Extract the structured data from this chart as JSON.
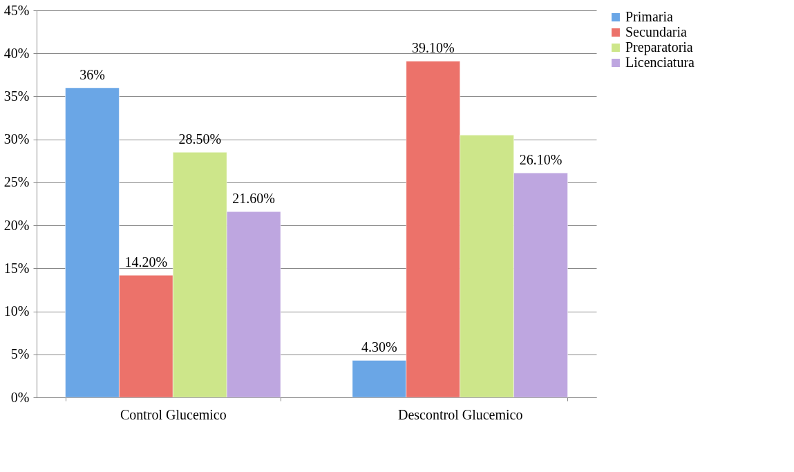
{
  "chart_data": {
    "type": "bar",
    "categories": [
      "Control Glucemico",
      "Descontrol Glucemico"
    ],
    "series": [
      {
        "name": "Primaria",
        "color": "#6aa6e6",
        "values": [
          36,
          4.3
        ],
        "value_labels": [
          "36%",
          "4.30%"
        ]
      },
      {
        "name": "Secundaria",
        "color": "#ec726a",
        "values": [
          14.2,
          39.1
        ],
        "value_labels": [
          "14.20%",
          "39.10%"
        ]
      },
      {
        "name": "Preparatoria",
        "color": "#cde68a",
        "values": [
          28.5,
          30.5
        ],
        "value_labels": [
          "28.50%",
          null
        ]
      },
      {
        "name": "Licenciatura",
        "color": "#bea6e0",
        "values": [
          21.6,
          26.1
        ],
        "value_labels": [
          "21.60%",
          "26.10%"
        ]
      }
    ],
    "ylim": [
      0,
      45
    ],
    "yticks": [
      {
        "value": 0,
        "label": "0%"
      },
      {
        "value": 5,
        "label": "5%"
      },
      {
        "value": 10,
        "label": "10%"
      },
      {
        "value": 15,
        "label": "15%"
      },
      {
        "value": 20,
        "label": "20%"
      },
      {
        "value": 25,
        "label": "25%"
      },
      {
        "value": 30,
        "label": "30%"
      },
      {
        "value": 35,
        "label": "35%"
      },
      {
        "value": 40,
        "label": "40%"
      },
      {
        "value": 45,
        "label": "45%"
      }
    ],
    "grid": "y",
    "legend": "right"
  }
}
